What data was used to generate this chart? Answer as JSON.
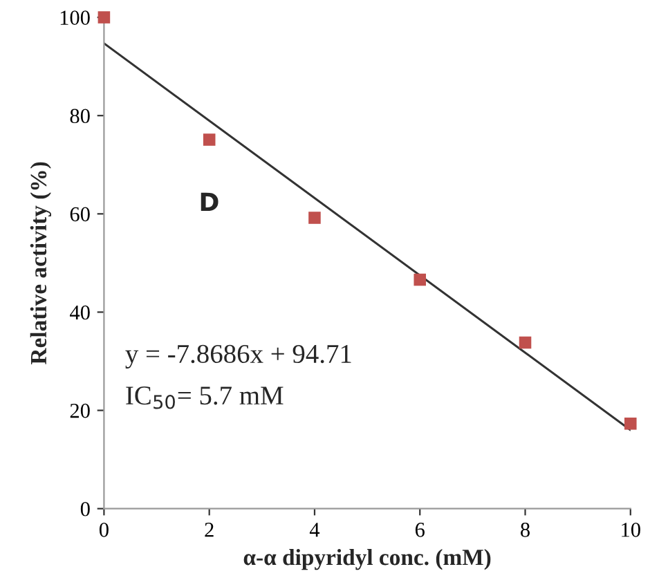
{
  "chart_data": {
    "type": "scatter",
    "xlabel": "α-α dipyridyl conc. (mM)",
    "ylabel": "Relative activity (%)",
    "series": [
      {
        "color": "#c0504d",
        "x": [
          0,
          2,
          4,
          6,
          8,
          10
        ],
        "values": [
          100,
          75.1,
          59.2,
          46.6,
          33.8,
          17.3
        ],
        "marker": "square"
      },
      {
        "type": "line",
        "color": "#333333",
        "x": [
          0,
          10
        ],
        "values": [
          94.7,
          16
        ],
        "marker": "none",
        "line_style": "solid"
      }
    ],
    "xlim": [
      0,
      10
    ],
    "xticks": [
      0,
      2,
      4,
      6,
      8,
      10
    ],
    "ylim": [
      0,
      100
    ],
    "yticks": [
      0,
      20,
      40,
      60,
      80,
      100
    ],
    "grid": false,
    "legend": false,
    "annotations": [
      "D",
      "y = -7.8686x + 94.71",
      "IC$_{50}$= 5.7 mM"
    ]
  }
}
